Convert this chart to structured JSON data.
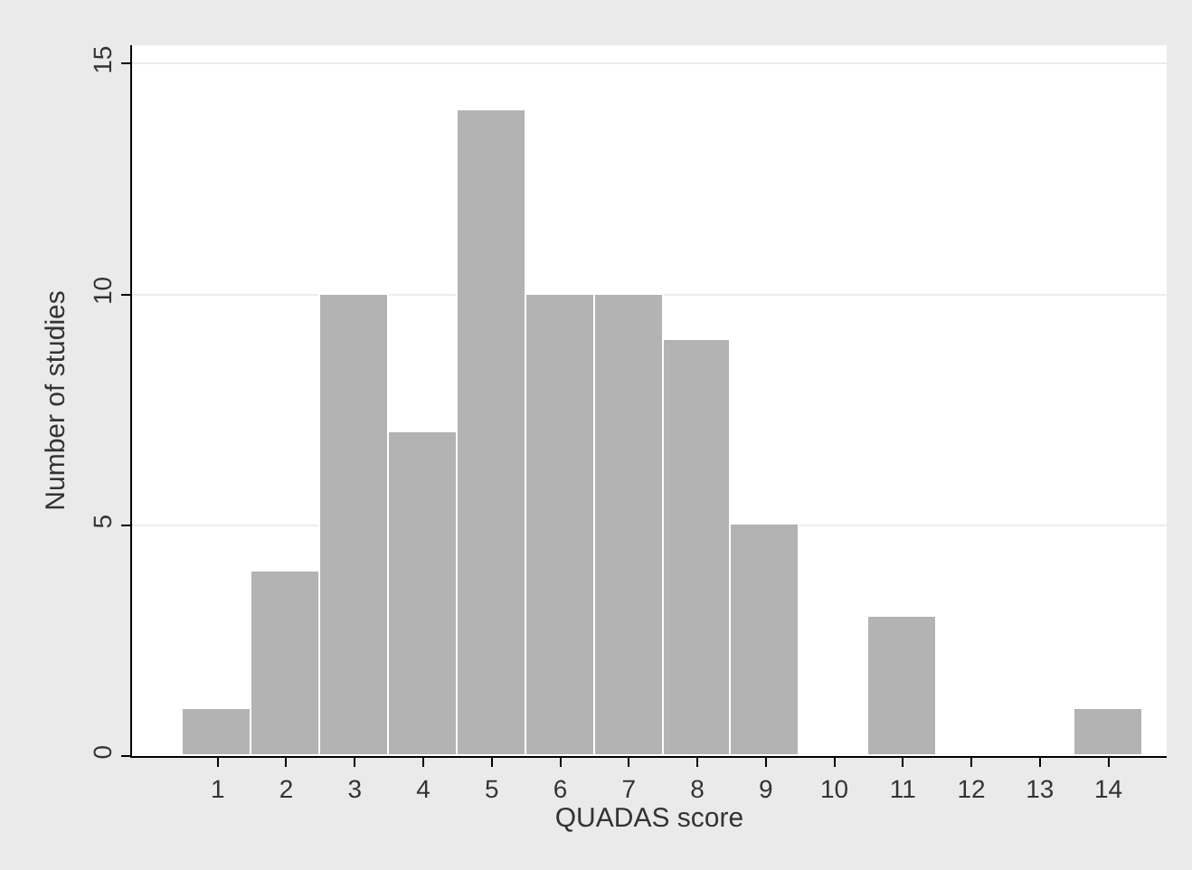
{
  "chart_data": {
    "type": "histogram",
    "xlabel": "QUADAS score",
    "ylabel": "Number of studies",
    "bins": [
      0.5,
      1.5,
      2.5,
      3.5,
      4.5,
      5.5,
      6.5,
      7.5,
      8.5,
      9.5,
      10.5,
      11.5,
      12.5,
      13.5,
      14.5
    ],
    "values": [
      1,
      4,
      10,
      7,
      14,
      10,
      10,
      9,
      5,
      0,
      3,
      0,
      0,
      1
    ],
    "color": "#b3b3b3",
    "xlim": [
      -0.25,
      14.85
    ],
    "xticks": [
      1,
      2,
      3,
      4,
      5,
      6,
      7,
      8,
      9,
      10,
      11,
      12,
      13,
      14
    ],
    "ylim": [
      0,
      15.4
    ],
    "yticks": [
      0,
      5,
      10,
      15
    ],
    "grid": "y"
  }
}
